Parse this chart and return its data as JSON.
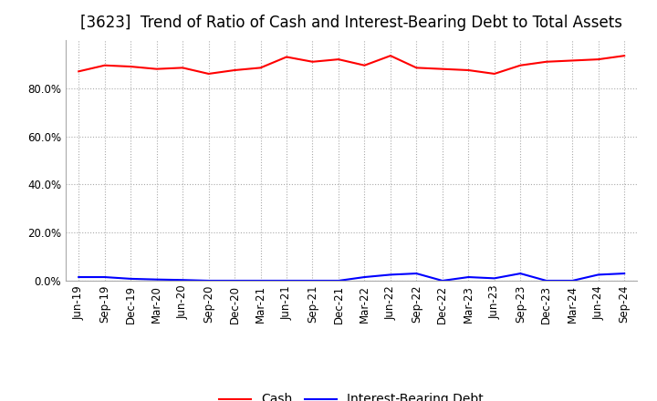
{
  "title": "[3623]  Trend of Ratio of Cash and Interest-Bearing Debt to Total Assets",
  "x_labels": [
    "Jun-19",
    "Sep-19",
    "Dec-19",
    "Mar-20",
    "Jun-20",
    "Sep-20",
    "Dec-20",
    "Mar-21",
    "Jun-21",
    "Sep-21",
    "Dec-21",
    "Mar-22",
    "Jun-22",
    "Sep-22",
    "Dec-22",
    "Mar-23",
    "Jun-23",
    "Sep-23",
    "Dec-23",
    "Mar-24",
    "Jun-24",
    "Sep-24"
  ],
  "cash": [
    87.0,
    89.5,
    89.0,
    88.0,
    88.5,
    86.0,
    87.5,
    88.5,
    93.0,
    91.0,
    92.0,
    89.5,
    93.5,
    88.5,
    88.0,
    87.5,
    86.0,
    89.5,
    91.0,
    91.5,
    92.0,
    93.5
  ],
  "interest_bearing_debt": [
    1.5,
    1.5,
    0.8,
    0.5,
    0.3,
    0.0,
    0.0,
    0.0,
    0.0,
    0.0,
    0.0,
    1.5,
    2.5,
    3.0,
    0.0,
    1.5,
    1.0,
    3.0,
    0.0,
    0.0,
    2.5,
    3.0
  ],
  "cash_color": "#ff0000",
  "ibd_color": "#0000ff",
  "background_color": "#ffffff",
  "plot_bg_color": "#ffffff",
  "grid_color": "#aaaaaa",
  "ylim": [
    0.0,
    100.0
  ],
  "yticks": [
    0.0,
    20.0,
    40.0,
    60.0,
    80.0
  ],
  "legend_cash": "Cash",
  "legend_ibd": "Interest-Bearing Debt",
  "title_fontsize": 12,
  "axis_fontsize": 8.5,
  "legend_fontsize": 10
}
